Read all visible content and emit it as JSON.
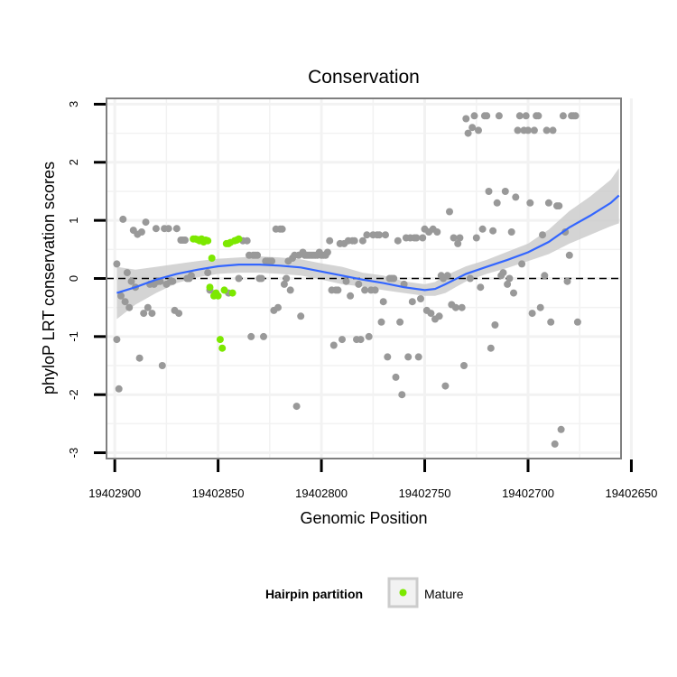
{
  "chart_data": {
    "type": "scatter",
    "title": "Conservation",
    "xlabel": "Genomic Position",
    "ylabel": "phyloP LRT conservation scores",
    "xlim": [
      19402904,
      19402655
    ],
    "ylim": [
      -3.1,
      3.1
    ],
    "x_reversed": true,
    "x_ticks": [
      19402900,
      19402850,
      19402800,
      19402750,
      19402700,
      19402650
    ],
    "x_tick_labels": [
      "19402900",
      "19402850",
      "19402800",
      "19402750",
      "19402700",
      "19402650"
    ],
    "y_ticks": [
      3,
      2,
      1,
      0,
      -1,
      -2,
      -3
    ],
    "y_tick_labels": [
      "3",
      "2",
      "1",
      "0",
      "-1",
      "-2",
      "-3"
    ],
    "reference_line": 0,
    "legend": {
      "title": "Hairpin partition",
      "placement": "bottom",
      "entries": [
        {
          "label": "Mature",
          "color": "#7CE800"
        }
      ]
    },
    "colors": {
      "other": "#999999",
      "mature": "#7CE800",
      "smooth": "#3366FF",
      "band": "#CCCCCC",
      "panel_border": "#7F7F7F",
      "grid": "#F2F2F2"
    },
    "series": [
      {
        "name": "Other",
        "points": [
          [
            19402899,
            0.25
          ],
          [
            19402899,
            -1.05
          ],
          [
            19402898,
            -1.9
          ],
          [
            19402897,
            -0.3
          ],
          [
            19402896,
            1.02
          ],
          [
            19402895,
            -0.4
          ],
          [
            19402894,
            0.1
          ],
          [
            19402893,
            -0.5
          ],
          [
            19402892,
            -0.05
          ],
          [
            19402891,
            0.83
          ],
          [
            19402890,
            -0.15
          ],
          [
            19402889,
            0.76
          ],
          [
            19402888,
            -1.37
          ],
          [
            19402887,
            0.8
          ],
          [
            19402886,
            -0.6
          ],
          [
            19402885,
            0.97
          ],
          [
            19402884,
            -0.5
          ],
          [
            19402883,
            -0.1
          ],
          [
            19402882,
            -0.6
          ],
          [
            19402881,
            -0.1
          ],
          [
            19402880,
            0.86
          ],
          [
            19402879,
            -0.05
          ],
          [
            19402878,
            -0.05
          ],
          [
            19402877,
            -1.5
          ],
          [
            19402876,
            0.86
          ],
          [
            19402875,
            -0.1
          ],
          [
            19402874,
            0.86
          ],
          [
            19402873,
            -0.05
          ],
          [
            19402872,
            -0.05
          ],
          [
            19402871,
            -0.55
          ],
          [
            19402870,
            0.86
          ],
          [
            19402869,
            -0.6
          ],
          [
            19402868,
            0.66
          ],
          [
            19402867,
            0.66
          ],
          [
            19402866,
            0.66
          ],
          [
            19402865,
            0.0
          ],
          [
            19402864,
            0.0
          ],
          [
            19402863,
            0.05
          ],
          [
            19402855,
            0.1
          ],
          [
            19402854,
            -0.2
          ],
          [
            19402845,
            -0.25
          ],
          [
            19402840,
            0.0
          ],
          [
            19402838,
            0.65
          ],
          [
            19402836,
            0.65
          ],
          [
            19402835,
            0.4
          ],
          [
            19402834,
            -1.0
          ],
          [
            19402833,
            0.4
          ],
          [
            19402832,
            0.4
          ],
          [
            19402831,
            0.4
          ],
          [
            19402830,
            0.0
          ],
          [
            19402829,
            0.0
          ],
          [
            19402828,
            -1.0
          ],
          [
            19402827,
            0.3
          ],
          [
            19402826,
            0.3
          ],
          [
            19402825,
            0.3
          ],
          [
            19402824,
            0.3
          ],
          [
            19402823,
            -0.55
          ],
          [
            19402822,
            0.85
          ],
          [
            19402821,
            -0.5
          ],
          [
            19402820,
            0.85
          ],
          [
            19402819,
            0.85
          ],
          [
            19402818,
            -0.1
          ],
          [
            19402817,
            0.0
          ],
          [
            19402816,
            0.3
          ],
          [
            19402815,
            -0.2
          ],
          [
            19402814,
            0.35
          ],
          [
            19402813,
            0.4
          ],
          [
            19402812,
            -2.2
          ],
          [
            19402811,
            0.4
          ],
          [
            19402810,
            -0.65
          ],
          [
            19402809,
            0.45
          ],
          [
            19402808,
            0.4
          ],
          [
            19402807,
            0.4
          ],
          [
            19402806,
            0.4
          ],
          [
            19402805,
            0.4
          ],
          [
            19402804,
            0.4
          ],
          [
            19402803,
            0.4
          ],
          [
            19402802,
            0.4
          ],
          [
            19402801,
            0.45
          ],
          [
            19402800,
            0.4
          ],
          [
            19402799,
            0.4
          ],
          [
            19402798,
            0.4
          ],
          [
            19402797,
            0.45
          ],
          [
            19402796,
            0.65
          ],
          [
            19402795,
            -0.2
          ],
          [
            19402794,
            -1.15
          ],
          [
            19402793,
            -0.2
          ],
          [
            19402792,
            -0.2
          ],
          [
            19402791,
            0.6
          ],
          [
            19402790,
            -1.05
          ],
          [
            19402789,
            0.6
          ],
          [
            19402788,
            -0.05
          ],
          [
            19402787,
            0.65
          ],
          [
            19402786,
            -0.3
          ],
          [
            19402785,
            0.65
          ],
          [
            19402784,
            0.65
          ],
          [
            19402783,
            -1.05
          ],
          [
            19402782,
            -0.1
          ],
          [
            19402781,
            -1.05
          ],
          [
            19402780,
            0.65
          ],
          [
            19402779,
            -0.2
          ],
          [
            19402778,
            0.75
          ],
          [
            19402777,
            -1.0
          ],
          [
            19402776,
            -0.2
          ],
          [
            19402775,
            0.75
          ],
          [
            19402774,
            -0.2
          ],
          [
            19402773,
            0.75
          ],
          [
            19402772,
            0.75
          ],
          [
            19402771,
            -0.75
          ],
          [
            19402770,
            -0.4
          ],
          [
            19402769,
            0.75
          ],
          [
            19402768,
            -1.35
          ],
          [
            19402767,
            0.0
          ],
          [
            19402766,
            0.0
          ],
          [
            19402765,
            0.0
          ],
          [
            19402764,
            -1.7
          ],
          [
            19402763,
            0.65
          ],
          [
            19402762,
            -0.75
          ],
          [
            19402761,
            -2.0
          ],
          [
            19402760,
            -0.1
          ],
          [
            19402759,
            0.7
          ],
          [
            19402758,
            -1.35
          ],
          [
            19402757,
            0.7
          ],
          [
            19402756,
            -0.4
          ],
          [
            19402755,
            0.7
          ],
          [
            19402754,
            0.7
          ],
          [
            19402753,
            -1.35
          ],
          [
            19402752,
            -0.35
          ],
          [
            19402751,
            0.7
          ],
          [
            19402750,
            0.85
          ],
          [
            19402749,
            -0.55
          ],
          [
            19402748,
            0.8
          ],
          [
            19402747,
            -0.6
          ],
          [
            19402746,
            0.85
          ],
          [
            19402745,
            -0.7
          ],
          [
            19402744,
            0.8
          ],
          [
            19402743,
            -0.65
          ],
          [
            19402742,
            0.05
          ],
          [
            19402741,
            0.0
          ],
          [
            19402740,
            -1.85
          ],
          [
            19402739,
            0.05
          ],
          [
            19402738,
            1.15
          ],
          [
            19402737,
            -0.45
          ],
          [
            19402736,
            0.7
          ],
          [
            19402735,
            -0.5
          ],
          [
            19402734,
            0.6
          ],
          [
            19402733,
            0.7
          ],
          [
            19402732,
            -0.5
          ],
          [
            19402731,
            -1.5
          ],
          [
            19402730,
            2.75
          ],
          [
            19402729,
            2.5
          ],
          [
            19402728,
            0.0
          ],
          [
            19402727,
            2.6
          ],
          [
            19402726,
            2.8
          ],
          [
            19402725,
            0.7
          ],
          [
            19402724,
            2.55
          ],
          [
            19402723,
            -0.15
          ],
          [
            19402722,
            0.85
          ],
          [
            19402721,
            2.8
          ],
          [
            19402720,
            2.8
          ],
          [
            19402719,
            1.5
          ],
          [
            19402718,
            -1.2
          ],
          [
            19402717,
            0.82
          ],
          [
            19402716,
            -0.8
          ],
          [
            19402715,
            1.3
          ],
          [
            19402714,
            2.8
          ],
          [
            19402713,
            0.05
          ],
          [
            19402712,
            0.1
          ],
          [
            19402711,
            1.5
          ],
          [
            19402710,
            -0.1
          ],
          [
            19402709,
            0.0
          ],
          [
            19402708,
            0.8
          ],
          [
            19402707,
            -0.25
          ],
          [
            19402706,
            1.4
          ],
          [
            19402705,
            2.55
          ],
          [
            19402704,
            2.8
          ],
          [
            19402703,
            0.25
          ],
          [
            19402702,
            2.55
          ],
          [
            19402701,
            2.8
          ],
          [
            19402700,
            2.55
          ],
          [
            19402699,
            1.3
          ],
          [
            19402698,
            -0.6
          ],
          [
            19402697,
            2.55
          ],
          [
            19402696,
            2.8
          ],
          [
            19402695,
            2.8
          ],
          [
            19402694,
            -0.5
          ],
          [
            19402693,
            0.75
          ],
          [
            19402692,
            0.05
          ],
          [
            19402691,
            2.55
          ],
          [
            19402690,
            1.3
          ],
          [
            19402689,
            -0.75
          ],
          [
            19402688,
            2.55
          ],
          [
            19402687,
            -2.85
          ],
          [
            19402686,
            1.25
          ],
          [
            19402685,
            1.25
          ],
          [
            19402684,
            -2.6
          ],
          [
            19402683,
            2.8
          ],
          [
            19402682,
            0.8
          ],
          [
            19402681,
            -0.05
          ],
          [
            19402680,
            0.4
          ],
          [
            19402679,
            2.8
          ],
          [
            19402678,
            2.8
          ],
          [
            19402677,
            2.8
          ],
          [
            19402676,
            -0.75
          ]
        ]
      },
      {
        "name": "Mature",
        "points": [
          [
            19402862,
            0.68
          ],
          [
            19402861,
            0.68
          ],
          [
            19402860,
            0.67
          ],
          [
            19402859,
            0.65
          ],
          [
            19402858,
            0.68
          ],
          [
            19402857,
            0.63
          ],
          [
            19402856,
            0.66
          ],
          [
            19402855,
            0.65
          ],
          [
            19402854,
            -0.15
          ],
          [
            19402853,
            0.35
          ],
          [
            19402852,
            -0.3
          ],
          [
            19402851,
            -0.25
          ],
          [
            19402850,
            -0.3
          ],
          [
            19402849,
            -1.05
          ],
          [
            19402848,
            -1.2
          ],
          [
            19402847,
            -0.2
          ],
          [
            19402846,
            0.6
          ],
          [
            19402845,
            0.6
          ],
          [
            19402844,
            0.62
          ],
          [
            19402843,
            -0.25
          ],
          [
            19402842,
            0.65
          ],
          [
            19402841,
            0.66
          ],
          [
            19402840,
            0.68
          ]
        ]
      }
    ],
    "smooth": {
      "x": [
        19402899,
        19402890,
        19402880,
        19402870,
        19402860,
        19402850,
        19402840,
        19402830,
        19402820,
        19402810,
        19402800,
        19402790,
        19402780,
        19402770,
        19402760,
        19402750,
        19402745,
        19402740,
        19402730,
        19402720,
        19402710,
        19402700,
        19402690,
        19402680,
        19402670,
        19402660,
        19402656
      ],
      "y": [
        -0.25,
        -0.15,
        -0.02,
        0.08,
        0.15,
        0.21,
        0.24,
        0.24,
        0.22,
        0.19,
        0.12,
        0.05,
        -0.02,
        -0.08,
        -0.15,
        -0.2,
        -0.18,
        -0.1,
        0.08,
        0.2,
        0.32,
        0.45,
        0.63,
        0.88,
        1.08,
        1.3,
        1.43
      ],
      "lower": [
        -0.7,
        -0.45,
        -0.25,
        -0.08,
        0.02,
        0.08,
        0.1,
        0.1,
        0.08,
        0.05,
        -0.02,
        -0.1,
        -0.14,
        -0.2,
        -0.25,
        -0.3,
        -0.3,
        -0.25,
        -0.05,
        0.08,
        0.18,
        0.3,
        0.42,
        0.6,
        0.75,
        0.9,
        0.95
      ],
      "upper": [
        0.2,
        0.15,
        0.2,
        0.25,
        0.3,
        0.34,
        0.36,
        0.38,
        0.36,
        0.33,
        0.26,
        0.2,
        0.1,
        0.05,
        -0.05,
        -0.1,
        -0.06,
        0.05,
        0.21,
        0.32,
        0.46,
        0.6,
        0.84,
        1.16,
        1.41,
        1.7,
        1.9
      ]
    }
  }
}
